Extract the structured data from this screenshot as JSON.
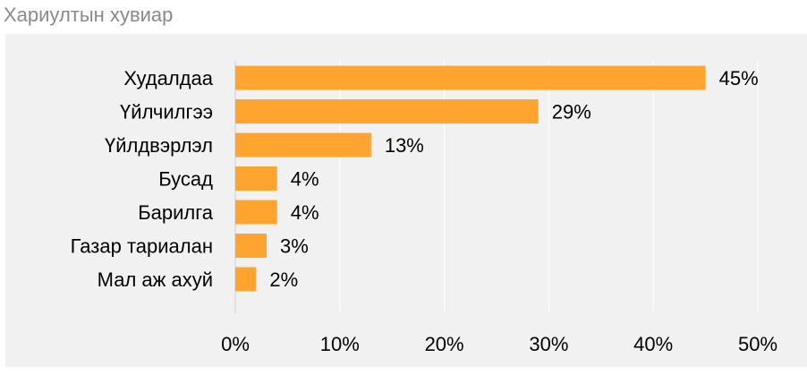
{
  "title": "Хариултын хувиар",
  "chart_data": {
    "type": "bar",
    "orientation": "horizontal",
    "categories": [
      "Худалдаа",
      "Үйлчилгээ",
      "Үйлдвэрлэл",
      "Бусад",
      "Барилга",
      "Газар тариалан",
      "Мал аж ахуй"
    ],
    "values": [
      45,
      29,
      13,
      4,
      4,
      3,
      2
    ],
    "data_labels": [
      "45%",
      "29%",
      "13%",
      "4%",
      "4%",
      "3%",
      "2%"
    ],
    "x_ticks": [
      "0%",
      "10%",
      "20%",
      "30%",
      "40%",
      "50%"
    ],
    "xlim": [
      0,
      50
    ],
    "grid": true,
    "bar_color": "#FFA52F",
    "grid_color": "#FFFFFF",
    "background_color": "#F1F1F1"
  }
}
